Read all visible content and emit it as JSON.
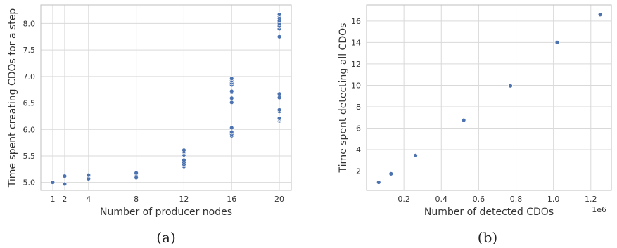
{
  "chart_data": [
    {
      "type": "scatter",
      "xlabel": "Number of producer nodes",
      "ylabel": "Time spent creating CDOs for a step",
      "xticks": [
        1,
        2,
        4,
        8,
        12,
        16,
        20
      ],
      "yticks": [
        5.0,
        5.5,
        6.0,
        6.5,
        7.0,
        7.5,
        8.0
      ],
      "ytick_labels": [
        "5.0",
        "5.5",
        "6.0",
        "6.5",
        "7.0",
        "7.5",
        "8.0"
      ],
      "xlim": [
        0,
        21
      ],
      "ylim": [
        4.85,
        8.35
      ],
      "grid": true,
      "caption": "(a)",
      "points": [
        [
          1,
          5.0
        ],
        [
          2,
          4.97
        ],
        [
          2,
          5.12
        ],
        [
          4,
          5.07
        ],
        [
          4,
          5.12
        ],
        [
          4,
          5.14
        ],
        [
          8,
          5.09
        ],
        [
          8,
          5.16
        ],
        [
          8,
          5.18
        ],
        [
          12,
          5.3
        ],
        [
          12,
          5.34
        ],
        [
          12,
          5.38
        ],
        [
          12,
          5.42
        ],
        [
          12,
          5.52
        ],
        [
          12,
          5.56
        ],
        [
          12,
          5.58
        ],
        [
          12,
          5.61
        ],
        [
          16,
          5.88
        ],
        [
          16,
          5.91
        ],
        [
          16,
          5.95
        ],
        [
          16,
          6.03
        ],
        [
          16,
          6.51
        ],
        [
          16,
          6.59
        ],
        [
          16,
          6.7
        ],
        [
          16,
          6.72
        ],
        [
          16,
          6.84
        ],
        [
          16,
          6.88
        ],
        [
          16,
          6.92
        ],
        [
          16,
          6.96
        ],
        [
          20,
          6.16
        ],
        [
          20,
          6.19
        ],
        [
          20,
          6.21
        ],
        [
          20,
          6.34
        ],
        [
          20,
          6.37
        ],
        [
          20,
          6.6
        ],
        [
          20,
          6.67
        ],
        [
          20,
          7.75
        ],
        [
          20,
          7.9
        ],
        [
          20,
          7.95
        ],
        [
          20,
          8.0
        ],
        [
          20,
          8.05
        ],
        [
          20,
          8.1
        ],
        [
          20,
          8.14
        ],
        [
          20,
          8.17
        ]
      ]
    },
    {
      "type": "scatter",
      "xlabel": "Number of detected CDOs",
      "ylabel": "Time spent detecting all CDOs",
      "xticks": [
        0.2,
        0.4,
        0.6,
        0.8,
        1.0,
        1.2
      ],
      "xtick_labels": [
        "0.2",
        "0.4",
        "0.6",
        "0.8",
        "1.0",
        "1.2"
      ],
      "yticks": [
        2,
        4,
        6,
        8,
        10,
        12,
        14,
        16
      ],
      "ytick_labels": [
        "2",
        "4",
        "6",
        "8",
        "10",
        "12",
        "14",
        "16"
      ],
      "x_offset_label": "1e6",
      "xlim": [
        0.0,
        1.31
      ],
      "ylim": [
        0.2,
        17.5
      ],
      "grid": true,
      "caption": "(b)",
      "points": [
        [
          0.065,
          0.95
        ],
        [
          0.131,
          1.75
        ],
        [
          0.262,
          3.45
        ],
        [
          0.52,
          6.75
        ],
        [
          0.77,
          9.95
        ],
        [
          1.02,
          14.0
        ],
        [
          1.25,
          16.6
        ]
      ]
    }
  ]
}
